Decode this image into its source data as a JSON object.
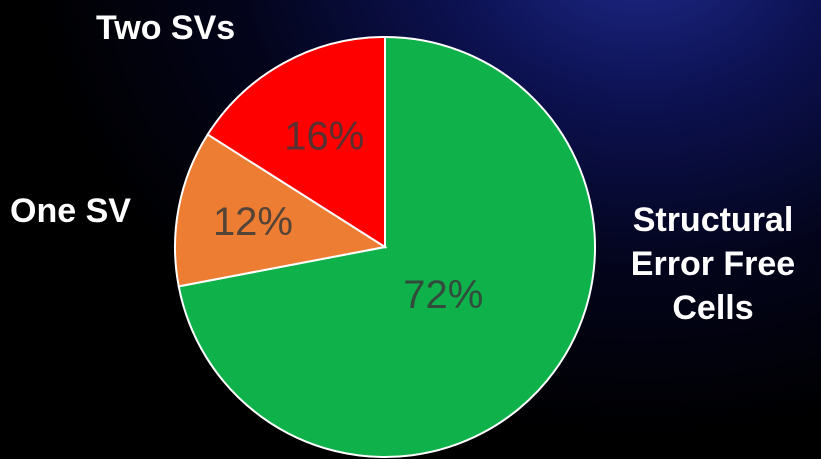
{
  "chart_data": {
    "type": "pie",
    "categories": [
      "Structural Error Free Cells",
      "One SV",
      "Two SVs"
    ],
    "values": [
      72,
      12,
      16
    ],
    "value_labels": [
      "72%",
      "12%",
      "16%"
    ],
    "colors": [
      "#0fb14a",
      "#ec7d32",
      "#fe0000"
    ],
    "start": "top, clockwise",
    "legend": "none (category labels placed beside slices)"
  }
}
